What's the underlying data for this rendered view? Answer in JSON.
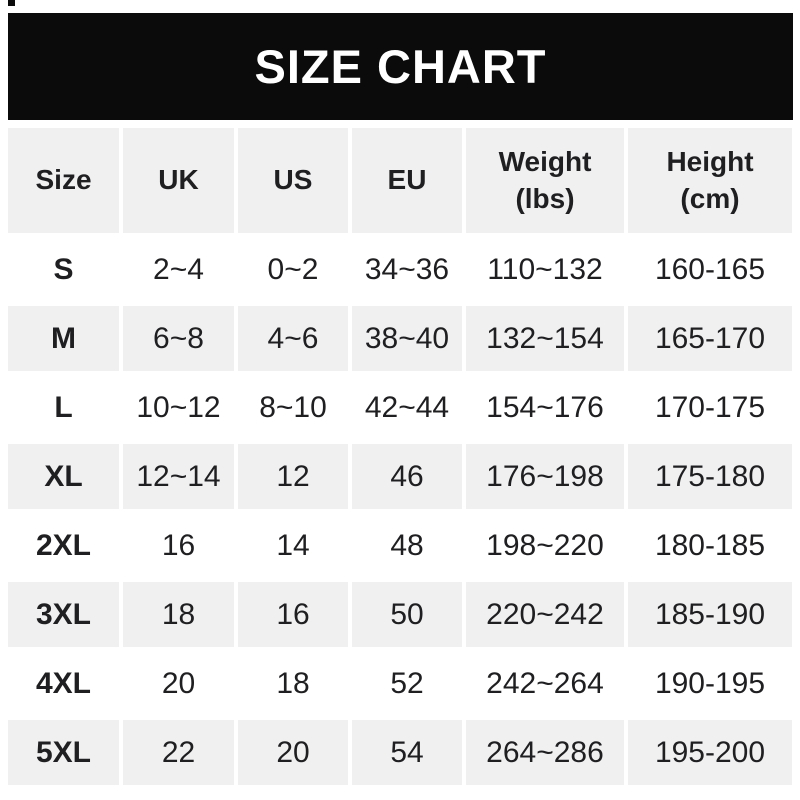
{
  "banner": {
    "title": "SIZE CHART",
    "bg_color": "#0b0b0b",
    "text_color": "#ffffff"
  },
  "table": {
    "header_labels": [
      "Size",
      "UK",
      "US",
      "EU",
      "Weight\n(lbs)",
      "Height\n(cm)"
    ],
    "alt_row_bg": "#f0f0f1",
    "text_color": "#1f1f22"
  },
  "chart_data": {
    "type": "table",
    "title": "SIZE CHART",
    "columns": [
      "Size",
      "UK",
      "US",
      "EU",
      "Weight (lbs)",
      "Height (cm)"
    ],
    "rows": [
      [
        "S",
        "2~4",
        "0~2",
        "34~36",
        "110~132",
        "160-165"
      ],
      [
        "M",
        "6~8",
        "4~6",
        "38~40",
        "132~154",
        "165-170"
      ],
      [
        "L",
        "10~12",
        "8~10",
        "42~44",
        "154~176",
        "170-175"
      ],
      [
        "XL",
        "12~14",
        "12",
        "46",
        "176~198",
        "175-180"
      ],
      [
        "2XL",
        "16",
        "14",
        "48",
        "198~220",
        "180-185"
      ],
      [
        "3XL",
        "18",
        "16",
        "50",
        "220~242",
        "185-190"
      ],
      [
        "4XL",
        "20",
        "18",
        "52",
        "242~264",
        "190-195"
      ],
      [
        "5XL",
        "22",
        "20",
        "54",
        "264~286",
        "195-200"
      ]
    ],
    "layout": {
      "header_row_shaded": true,
      "alternating_shaded_rows": [
        "M",
        "XL",
        "3XL",
        "5XL"
      ],
      "legend": "none",
      "grid": "off"
    }
  }
}
